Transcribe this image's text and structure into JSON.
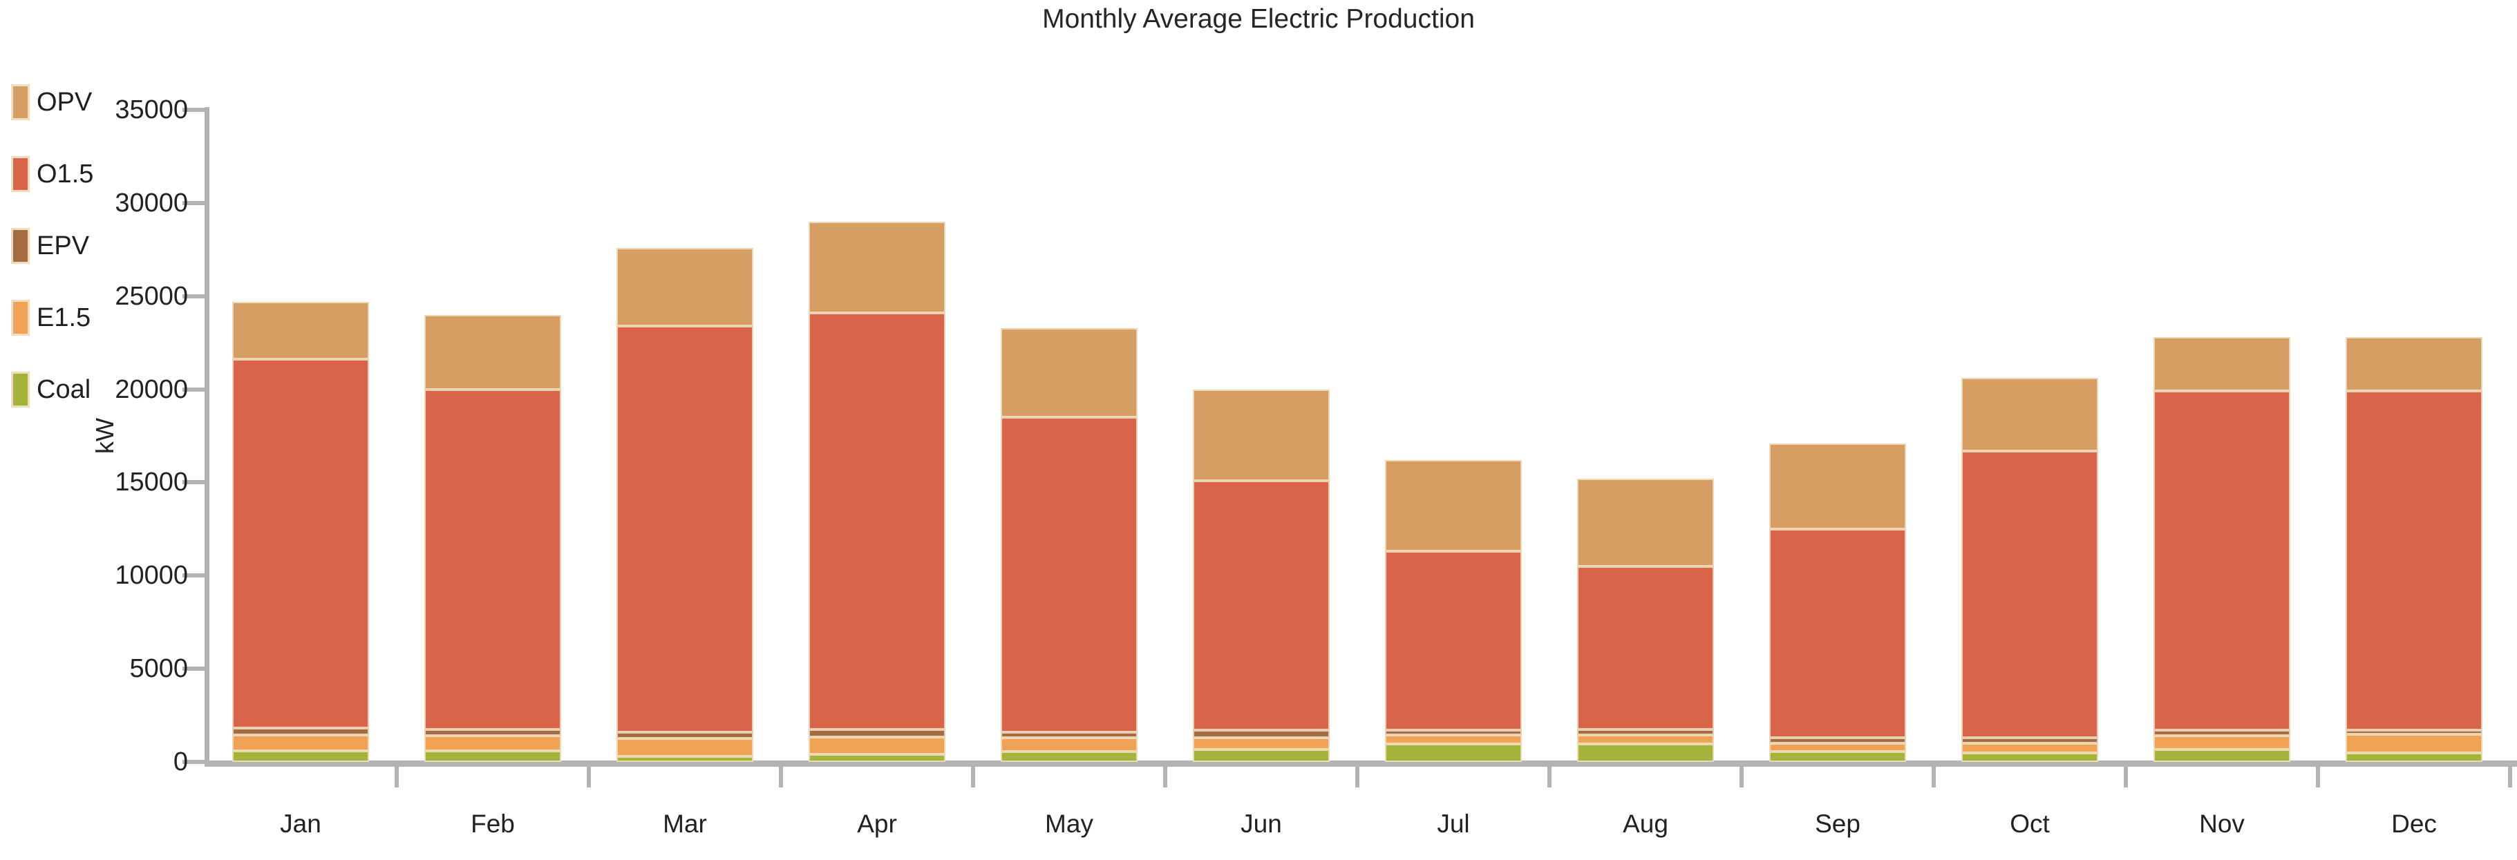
{
  "title": "Monthly Average Electric Production",
  "y_axis": {
    "label": "kW",
    "tick_interval": 5000,
    "min": 0,
    "max": 35000
  },
  "legend": {
    "position": "top-left",
    "items": [
      {
        "label": "OPV",
        "color": "#D79E63"
      },
      {
        "label": "O1.5",
        "color": "#D8644A"
      },
      {
        "label": "EPV",
        "color": "#A56B43"
      },
      {
        "label": "E1.5",
        "color": "#F0A355"
      },
      {
        "label": "Coal",
        "color": "#A4B339"
      }
    ]
  },
  "colors": {
    "background": "#FFFFFF",
    "axis": "#B3B3B3",
    "text": "#222222",
    "segment_border": "#F3E2C5"
  },
  "chart_data": {
    "type": "bar",
    "stacked": true,
    "title": "Monthly Average Electric Production",
    "xlabel": "",
    "ylabel": "kW",
    "ylim": [
      0,
      35000
    ],
    "yticks": [
      0,
      5000,
      10000,
      15000,
      20000,
      25000,
      30000,
      35000
    ],
    "grid": false,
    "legend_position": "left",
    "categories": [
      "Jan",
      "Feb",
      "Mar",
      "Apr",
      "May",
      "Jun",
      "Jul",
      "Aug",
      "Sep",
      "Oct",
      "Nov",
      "Dec"
    ],
    "series": [
      {
        "name": "Coal",
        "color": "#A4B339",
        "values": [
          600,
          600,
          300,
          400,
          550,
          650,
          950,
          950,
          550,
          480,
          650,
          500
        ]
      },
      {
        "name": "E1.5",
        "color": "#F0A355",
        "values": [
          850,
          800,
          950,
          950,
          750,
          650,
          500,
          500,
          450,
          520,
          750,
          1000
        ]
      },
      {
        "name": "EPV",
        "color": "#A56B43",
        "values": [
          350,
          350,
          350,
          400,
          300,
          400,
          250,
          300,
          300,
          300,
          300,
          200
        ]
      },
      {
        "name": "O1.5",
        "color": "#D8644A",
        "values": [
          19800,
          18250,
          21800,
          22350,
          16900,
          13400,
          9600,
          8750,
          11200,
          15400,
          18200,
          18200
        ]
      },
      {
        "name": "OPV",
        "color": "#D79E63",
        "values": [
          3100,
          4000,
          4200,
          4900,
          4800,
          4900,
          4900,
          4700,
          4600,
          3900,
          2900,
          2900
        ]
      }
    ],
    "totals": [
      24700,
      24000,
      27600,
      29000,
      23300,
      20000,
      16200,
      15200,
      17100,
      20600,
      22800,
      22800
    ]
  }
}
